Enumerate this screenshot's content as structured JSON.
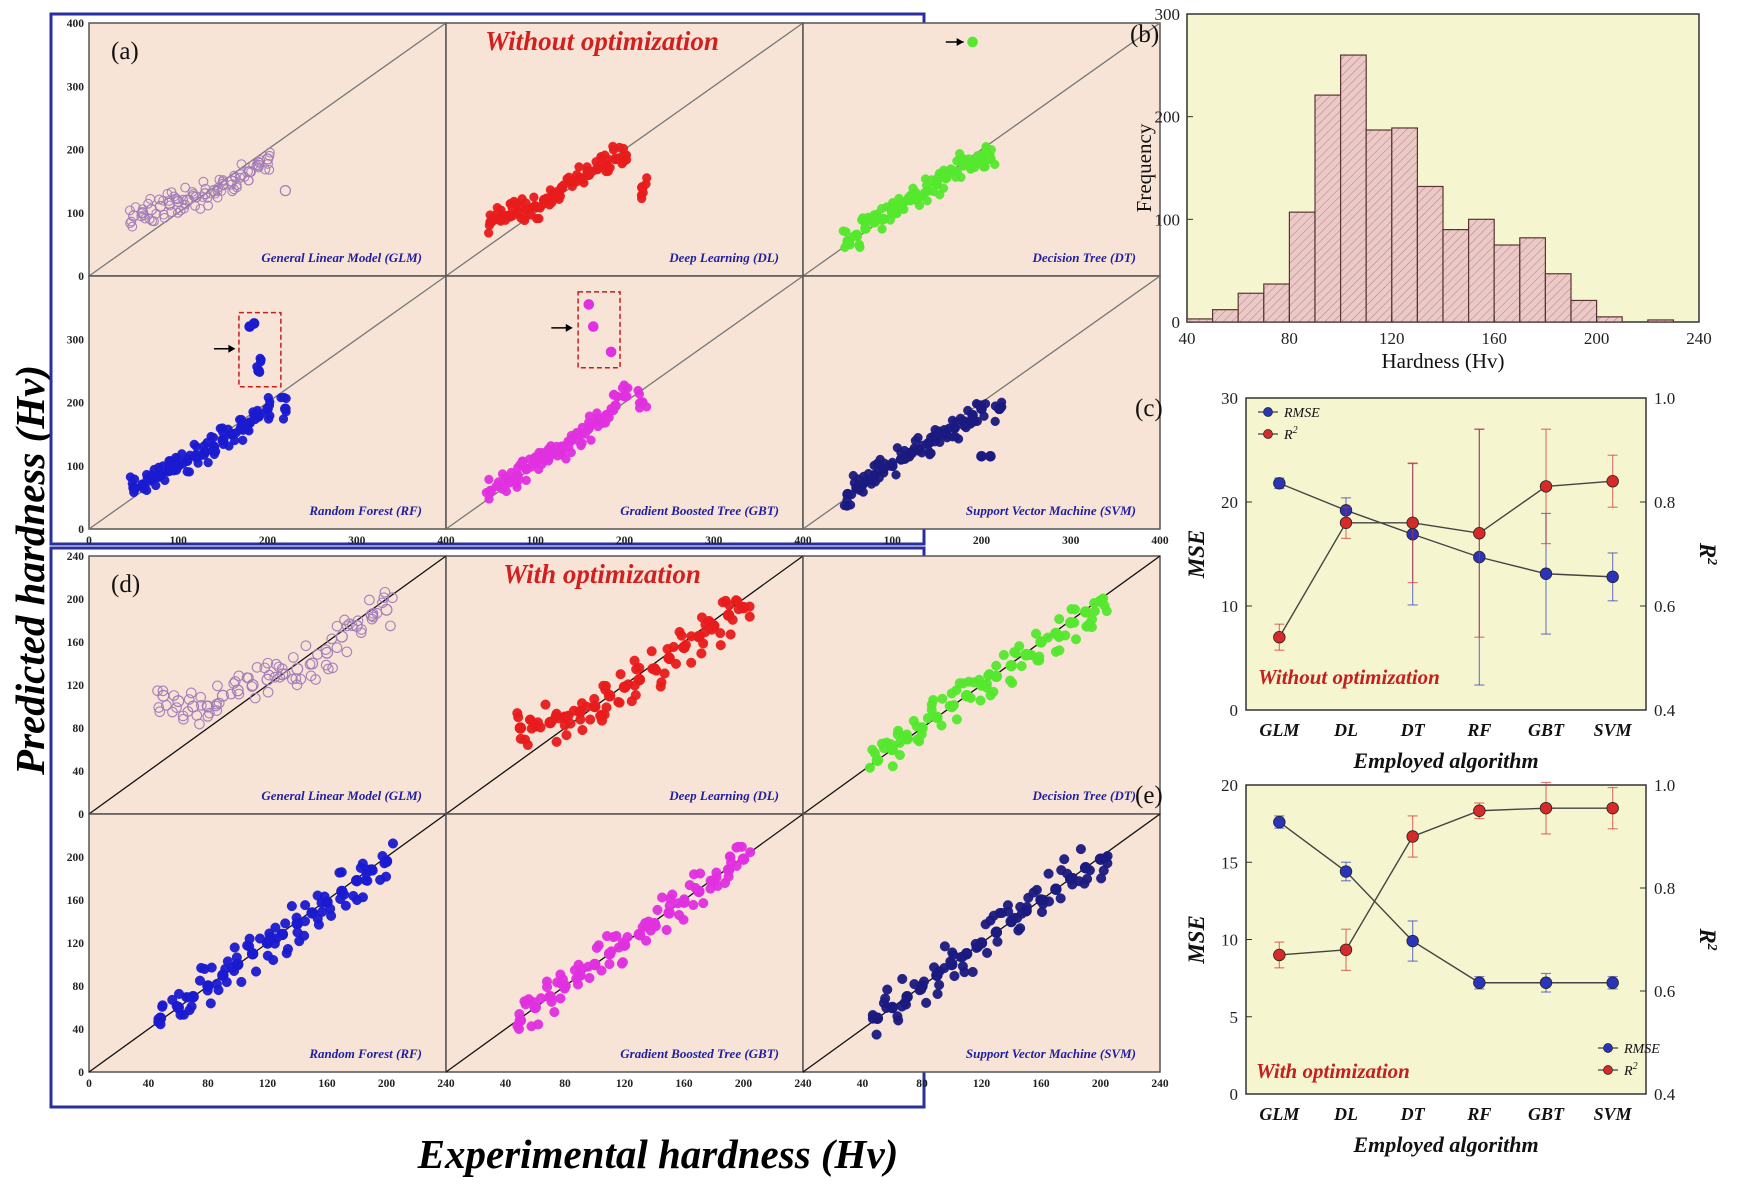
{
  "figure": {
    "shared_ylabel": "Predicted hardness (Hv)",
    "shared_xlabel": "Experimental hardness (Hv)"
  },
  "chart_data": [
    {
      "id": "a",
      "type": "scatter",
      "panel_label": "(a)",
      "title": "Without optimization",
      "xlim": [
        0,
        400
      ],
      "ylim": [
        0,
        400
      ],
      "xticks": [
        "0",
        "100",
        "200",
        "300",
        "400"
      ],
      "yticks": [
        "0",
        "100",
        "200",
        "300",
        "400"
      ],
      "ytick_values": [
        0,
        100,
        200,
        300,
        400
      ],
      "background": "#f8e4d6",
      "series": [
        {
          "name": "General Linear Model (GLM)",
          "color": "#a27bb8",
          "hollow": true,
          "x": [
            50,
            60,
            70,
            80,
            90,
            100,
            110,
            120,
            130,
            140,
            150,
            160,
            170,
            180,
            190,
            200,
            220
          ],
          "y": [
            95,
            100,
            105,
            110,
            115,
            118,
            120,
            125,
            130,
            135,
            145,
            150,
            160,
            165,
            175,
            185,
            135
          ]
        },
        {
          "name": "Deep Learning (DL)",
          "color": "#e81c1c",
          "x": [
            50,
            60,
            70,
            80,
            90,
            100,
            110,
            120,
            130,
            140,
            150,
            160,
            170,
            180,
            190,
            200,
            220
          ],
          "y": [
            85,
            90,
            95,
            100,
            105,
            110,
            120,
            130,
            140,
            150,
            155,
            160,
            170,
            175,
            185,
            190,
            140
          ]
        },
        {
          "name": "Decision Tree (DT)",
          "color": "#55e82e",
          "x": [
            50,
            60,
            70,
            80,
            90,
            100,
            110,
            120,
            130,
            140,
            150,
            160,
            170,
            180,
            190,
            200,
            210,
            190
          ],
          "y": [
            55,
            65,
            75,
            85,
            90,
            100,
            110,
            120,
            125,
            135,
            145,
            155,
            165,
            175,
            180,
            190,
            185,
            370
          ]
        },
        {
          "name": "Random Forest (RF)",
          "color": "#1a1ad0",
          "x": [
            50,
            60,
            70,
            80,
            90,
            100,
            110,
            120,
            130,
            140,
            150,
            160,
            170,
            180,
            190,
            200,
            220,
            180,
            185,
            190
          ],
          "y": [
            65,
            70,
            78,
            85,
            92,
            100,
            108,
            115,
            122,
            130,
            140,
            150,
            158,
            168,
            178,
            190,
            190,
            320,
            325,
            250
          ]
        },
        {
          "name": "Gradient Boosted Tree (GBT)",
          "color": "#e030e0",
          "x": [
            50,
            60,
            70,
            80,
            90,
            100,
            110,
            120,
            130,
            140,
            150,
            160,
            170,
            180,
            190,
            200,
            220,
            160,
            165,
            185
          ],
          "y": [
            60,
            68,
            75,
            85,
            95,
            105,
            110,
            120,
            130,
            140,
            150,
            160,
            170,
            180,
            195,
            210,
            200,
            355,
            320,
            280
          ]
        },
        {
          "name": "Support Vector Machine (SVM)",
          "color": "#1a1a80",
          "x": [
            50,
            60,
            70,
            80,
            90,
            100,
            110,
            120,
            130,
            140,
            150,
            160,
            170,
            180,
            190,
            200,
            220,
            200,
            210
          ],
          "y": [
            55,
            65,
            75,
            85,
            95,
            100,
            110,
            120,
            125,
            135,
            145,
            150,
            160,
            170,
            180,
            190,
            190,
            115,
            115
          ]
        }
      ]
    },
    {
      "id": "d",
      "type": "scatter",
      "panel_label": "(d)",
      "title": "With optimization",
      "xlim": [
        0,
        240
      ],
      "ylim": [
        0,
        240
      ],
      "xticks": [
        "0",
        "40",
        "80",
        "120",
        "160",
        "200",
        "240"
      ],
      "yticks": [
        "0",
        "40",
        "80",
        "120",
        "160",
        "200",
        "240"
      ],
      "ytick_values": [
        0,
        40,
        80,
        120,
        160,
        200,
        240
      ],
      "background": "#f8e4d6",
      "series": [
        {
          "name": "General Linear Model (GLM)",
          "color": "#a27bb8",
          "hollow": true,
          "x": [
            50,
            60,
            70,
            80,
            90,
            100,
            110,
            120,
            130,
            140,
            150,
            160,
            170,
            180,
            190,
            200
          ],
          "y": [
            110,
            105,
            100,
            100,
            110,
            115,
            120,
            125,
            130,
            135,
            140,
            150,
            165,
            175,
            185,
            190
          ]
        },
        {
          "name": "Deep Learning (DL)",
          "color": "#e81c1c",
          "x": [
            50,
            60,
            70,
            80,
            90,
            100,
            110,
            120,
            130,
            140,
            150,
            160,
            170,
            180,
            190,
            200
          ],
          "y": [
            80,
            82,
            85,
            90,
            95,
            100,
            110,
            118,
            125,
            135,
            145,
            155,
            165,
            175,
            185,
            192
          ]
        },
        {
          "name": "Decision Tree (DT)",
          "color": "#55e82e",
          "x": [
            50,
            60,
            70,
            80,
            90,
            100,
            110,
            120,
            130,
            140,
            150,
            160,
            170,
            180,
            190,
            200
          ],
          "y": [
            50,
            60,
            70,
            80,
            90,
            100,
            110,
            120,
            128,
            138,
            148,
            160,
            168,
            178,
            188,
            198
          ]
        },
        {
          "name": "Random Forest (RF)",
          "color": "#1a1ad0",
          "x": [
            48,
            60,
            70,
            80,
            90,
            100,
            110,
            120,
            130,
            140,
            150,
            160,
            170,
            180,
            190,
            200
          ],
          "y": [
            50,
            60,
            70,
            80,
            90,
            100,
            110,
            120,
            128,
            138,
            148,
            158,
            168,
            178,
            188,
            196
          ]
        },
        {
          "name": "Gradient Boosted Tree (GBT)",
          "color": "#e030e0",
          "x": [
            50,
            60,
            70,
            80,
            90,
            100,
            110,
            120,
            130,
            140,
            150,
            160,
            170,
            180,
            190,
            200
          ],
          "y": [
            48,
            60,
            70,
            80,
            90,
            100,
            110,
            118,
            128,
            138,
            148,
            158,
            168,
            178,
            188,
            198
          ]
        },
        {
          "name": "Support Vector Machine (SVM)",
          "color": "#1a1a80",
          "x": [
            50,
            60,
            70,
            80,
            90,
            100,
            110,
            120,
            130,
            140,
            150,
            160,
            170,
            180,
            190,
            200
          ],
          "y": [
            50,
            60,
            70,
            80,
            90,
            100,
            110,
            120,
            130,
            140,
            150,
            160,
            170,
            180,
            190,
            198
          ]
        }
      ]
    },
    {
      "id": "b",
      "type": "bar",
      "panel_label": "(b)",
      "xlabel": "Hardness (Hv)",
      "ylabel": "Frequency",
      "xlim": [
        40,
        240
      ],
      "ylim": [
        0,
        300
      ],
      "xticks": [
        "40",
        "80",
        "120",
        "160",
        "200",
        "240"
      ],
      "yticks": [
        "0",
        "100",
        "200",
        "300"
      ],
      "bin_edges": [
        40,
        50,
        60,
        70,
        80,
        90,
        100,
        110,
        120,
        130,
        140,
        150,
        160,
        170,
        180,
        190,
        200,
        210,
        220,
        230
      ],
      "values": [
        3,
        12,
        28,
        37,
        107,
        221,
        260,
        187,
        189,
        132,
        90,
        100,
        75,
        82,
        47,
        21,
        5,
        0,
        2
      ],
      "bar_color": "#eac9c6",
      "background": "#f5f5d0"
    },
    {
      "id": "c",
      "type": "line",
      "panel_label": "(c)",
      "annotation": "Without optimization",
      "xlabel": "Employed algorithm",
      "ylabel_left": "MSE",
      "ylabel_right": "R",
      "ylabel_right_sup": "2",
      "categories": [
        "GLM",
        "DL",
        "DT",
        "RF",
        "GBT",
        "SVM"
      ],
      "ylim_left": [
        0,
        30
      ],
      "yticks_left": [
        "0",
        "10",
        "20",
        "30"
      ],
      "ylim_right": [
        0.4,
        1.0
      ],
      "yticks_right": [
        "0.4",
        "0.6",
        "0.8",
        "1.0"
      ],
      "legend_position": "top-left",
      "background": "#f5f5d0",
      "series": [
        {
          "name": "RMSE",
          "axis": "left",
          "color": "#2a34b8",
          "values": [
            21.8,
            19.2,
            16.9,
            14.7,
            13.1,
            12.8
          ],
          "errors": [
            0.5,
            1.2,
            6.8,
            12.3,
            5.8,
            2.3
          ]
        },
        {
          "name": "R",
          "name_sup": "2",
          "axis": "right",
          "color": "#d42a2a",
          "values": [
            0.54,
            0.76,
            0.76,
            0.74,
            0.83,
            0.84
          ],
          "errors": [
            0.025,
            0.03,
            0.115,
            0.2,
            0.11,
            0.05
          ]
        }
      ]
    },
    {
      "id": "e",
      "type": "line",
      "panel_label": "(e)",
      "annotation": "With optimization",
      "xlabel": "Employed algorithm",
      "ylabel_left": "MSE",
      "ylabel_right": "R",
      "ylabel_right_sup": "2",
      "categories": [
        "GLM",
        "DL",
        "DT",
        "RF",
        "GBT",
        "SVM"
      ],
      "ylim_left": [
        0,
        20
      ],
      "yticks_left": [
        "0",
        "5",
        "10",
        "15",
        "20"
      ],
      "ylim_right": [
        0.4,
        1.0
      ],
      "yticks_right": [
        "0.4",
        "0.6",
        "0.8",
        "1.0"
      ],
      "legend_position": "bottom-right",
      "background": "#f5f5d0",
      "series": [
        {
          "name": "RMSE",
          "axis": "left",
          "color": "#2a34b8",
          "values": [
            17.6,
            14.4,
            9.9,
            7.2,
            7.2,
            7.2
          ],
          "errors": [
            0.4,
            0.6,
            1.3,
            0.4,
            0.6,
            0.4
          ]
        },
        {
          "name": "R",
          "name_sup": "2",
          "axis": "right",
          "color": "#d42a2a",
          "values": [
            0.67,
            0.68,
            0.9,
            0.95,
            0.955,
            0.955
          ],
          "errors": [
            0.025,
            0.04,
            0.04,
            0.015,
            0.05,
            0.04
          ]
        }
      ]
    }
  ]
}
